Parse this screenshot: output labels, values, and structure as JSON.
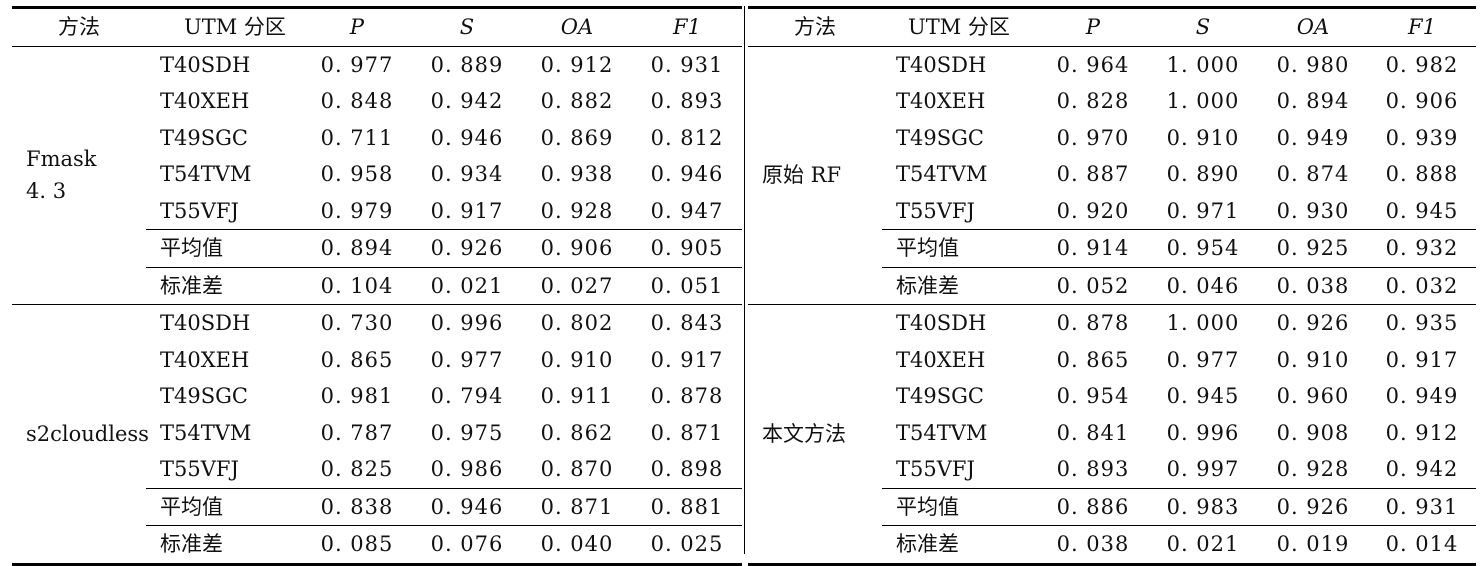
{
  "headers": {
    "method": "方法",
    "zone": "UTM 分区",
    "p": "P",
    "s": "S",
    "oa": "OA",
    "f1": "F1"
  },
  "left": {
    "block1": {
      "method_line1": "Fmask",
      "method_line2": "4. 3",
      "rows": [
        {
          "zone": "T40SDH",
          "p": "0. 977",
          "s": "0. 889",
          "oa": "0. 912",
          "f1": "0. 931"
        },
        {
          "zone": "T40XEH",
          "p": "0. 848",
          "s": "0. 942",
          "oa": "0. 882",
          "f1": "0. 893"
        },
        {
          "zone": "T49SGC",
          "p": "0. 711",
          "s": "0. 946",
          "oa": "0. 869",
          "f1": "0. 812"
        },
        {
          "zone": "T54TVM",
          "p": "0. 958",
          "s": "0. 934",
          "oa": "0. 938",
          "f1": "0. 946"
        },
        {
          "zone": "T55VFJ",
          "p": "0. 979",
          "s": "0. 917",
          "oa": "0. 928",
          "f1": "0. 947"
        },
        {
          "zone": "平均值",
          "p": "0. 894",
          "s": "0. 926",
          "oa": "0. 906",
          "f1": "0. 905"
        },
        {
          "zone": "标准差",
          "p": "0. 104",
          "s": "0. 021",
          "oa": "0. 027",
          "f1": "0. 051"
        }
      ]
    },
    "block2": {
      "method_line1": "s2cloudless",
      "rows": [
        {
          "zone": "T40SDH",
          "p": "0. 730",
          "s": "0. 996",
          "oa": "0. 802",
          "f1": "0. 843"
        },
        {
          "zone": "T40XEH",
          "p": "0. 865",
          "s": "0. 977",
          "oa": "0. 910",
          "f1": "0. 917"
        },
        {
          "zone": "T49SGC",
          "p": "0. 981",
          "s": "0. 794",
          "oa": "0. 911",
          "f1": "0. 878"
        },
        {
          "zone": "T54TVM",
          "p": "0. 787",
          "s": "0. 975",
          "oa": "0. 862",
          "f1": "0. 871"
        },
        {
          "zone": "T55VFJ",
          "p": "0. 825",
          "s": "0. 986",
          "oa": "0. 870",
          "f1": "0. 898"
        },
        {
          "zone": "平均值",
          "p": "0. 838",
          "s": "0. 946",
          "oa": "0. 871",
          "f1": "0. 881"
        },
        {
          "zone": "标准差",
          "p": "0. 085",
          "s": "0. 076",
          "oa": "0. 040",
          "f1": "0. 025"
        }
      ]
    }
  },
  "right": {
    "block1": {
      "method_line1": "原始 RF",
      "rows": [
        {
          "zone": "T40SDH",
          "p": "0. 964",
          "s": "1. 000",
          "oa": "0. 980",
          "f1": "0. 982"
        },
        {
          "zone": "T40XEH",
          "p": "0. 828",
          "s": "1. 000",
          "oa": "0. 894",
          "f1": "0. 906"
        },
        {
          "zone": "T49SGC",
          "p": "0. 970",
          "s": "0. 910",
          "oa": "0. 949",
          "f1": "0. 939"
        },
        {
          "zone": "T54TVM",
          "p": "0. 887",
          "s": "0. 890",
          "oa": "0. 874",
          "f1": "0. 888"
        },
        {
          "zone": "T55VFJ",
          "p": "0. 920",
          "s": "0. 971",
          "oa": "0. 930",
          "f1": "0. 945"
        },
        {
          "zone": "平均值",
          "p": "0. 914",
          "s": "0. 954",
          "oa": "0. 925",
          "f1": "0. 932"
        },
        {
          "zone": "标准差",
          "p": "0. 052",
          "s": "0. 046",
          "oa": "0. 038",
          "f1": "0. 032"
        }
      ]
    },
    "block2": {
      "method_line1": "本文方法",
      "rows": [
        {
          "zone": "T40SDH",
          "p": "0. 878",
          "s": "1. 000",
          "oa": "0. 926",
          "f1": "0. 935"
        },
        {
          "zone": "T40XEH",
          "p": "0. 865",
          "s": "0. 977",
          "oa": "0. 910",
          "f1": "0. 917"
        },
        {
          "zone": "T49SGC",
          "p": "0. 954",
          "s": "0. 945",
          "oa": "0. 960",
          "f1": "0. 949"
        },
        {
          "zone": "T54TVM",
          "p": "0. 841",
          "s": "0. 996",
          "oa": "0. 908",
          "f1": "0. 912"
        },
        {
          "zone": "T55VFJ",
          "p": "0. 893",
          "s": "0. 997",
          "oa": "0. 928",
          "f1": "0. 942"
        },
        {
          "zone": "平均值",
          "p": "0. 886",
          "s": "0. 983",
          "oa": "0. 926",
          "f1": "0. 931"
        },
        {
          "zone": "标准差",
          "p": "0. 038",
          "s": "0. 021",
          "oa": "0. 019",
          "f1": "0. 014"
        }
      ]
    }
  }
}
